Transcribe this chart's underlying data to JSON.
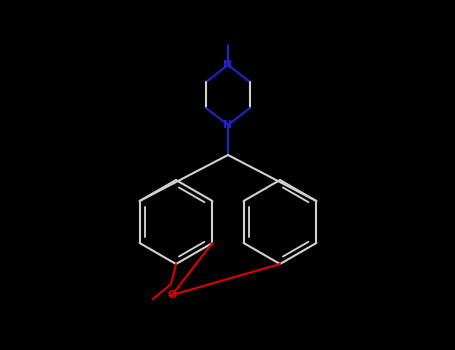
{
  "bg_color": "#000000",
  "bond_color": "#d0d0d0",
  "N_color": "#2222cc",
  "O_color": "#dd0000",
  "lw": 1.5,
  "figsize": [
    4.55,
    3.5
  ],
  "dpi": 100,
  "xlim": [
    0,
    455
  ],
  "ylim": [
    0,
    350
  ]
}
